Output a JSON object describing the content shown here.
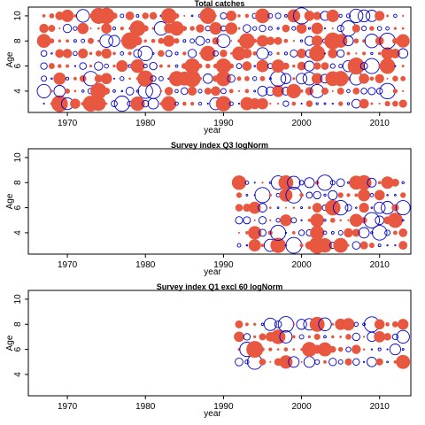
{
  "chart_data": [
    {
      "type": "scatter",
      "title": "Total catches",
      "xlabel": "year",
      "ylabel": "Age",
      "xlim": [
        1965,
        2014
      ],
      "ylim": [
        2.3,
        10.7
      ],
      "xticks": [
        1970,
        1980,
        1990,
        2000,
        2010
      ],
      "yticks": [
        4,
        6,
        8,
        10
      ],
      "year_range": [
        1967,
        2013
      ],
      "ages": [
        3,
        4,
        5,
        6,
        7,
        8,
        9,
        10
      ],
      "marker_note": "bubble residual plot; filled red = positive, open blue = negative",
      "colors": {
        "positive": "#e8573f",
        "negative": "#0000cc"
      }
    },
    {
      "type": "scatter",
      "title": "Survey index Q3 logNorm",
      "xlabel": "year",
      "ylabel": "Age",
      "xlim": [
        1965,
        2014
      ],
      "ylim": [
        2.3,
        10.7
      ],
      "xticks": [
        1970,
        1980,
        1990,
        2000,
        2010
      ],
      "yticks": [
        4,
        6,
        8,
        10
      ],
      "year_range": [
        1992,
        2013
      ],
      "ages": [
        3,
        4,
        5,
        6,
        7,
        8
      ],
      "marker_note": "bubble residual plot; filled red = positive, open blue = negative",
      "colors": {
        "positive": "#e8573f",
        "negative": "#0000cc"
      }
    },
    {
      "type": "scatter",
      "title": "Survey index Q1 excl 60 logNorm",
      "xlabel": "year",
      "ylabel": "Age",
      "xlim": [
        1965,
        2014
      ],
      "ylim": [
        2.3,
        10.7
      ],
      "xticks": [
        1970,
        1980,
        1990,
        2000,
        2010
      ],
      "yticks": [
        4,
        6,
        8,
        10
      ],
      "year_range": [
        1992,
        2013
      ],
      "ages": [
        5,
        6,
        7,
        8
      ],
      "marker_note": "bubble residual plot; filled red = positive, open blue = negative",
      "colors": {
        "positive": "#e8573f",
        "negative": "#0000cc"
      }
    }
  ]
}
